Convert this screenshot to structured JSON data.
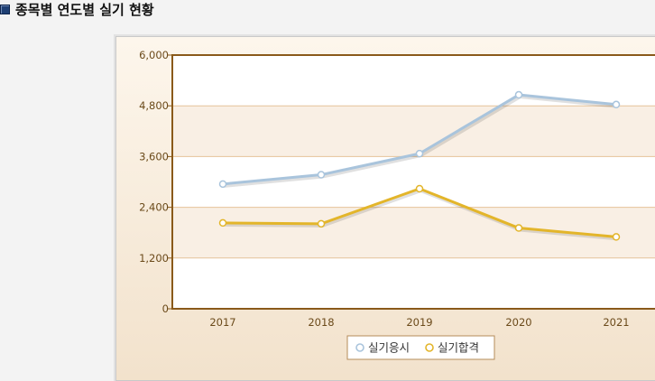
{
  "page": {
    "title": "종목별 연도별 실기 현황"
  },
  "chart_data": {
    "type": "line",
    "categories": [
      "2017",
      "2018",
      "2019",
      "2020",
      "2021"
    ],
    "series": [
      {
        "name": "실기응시",
        "values": [
          2950,
          3170,
          3670,
          5060,
          4830
        ],
        "color": "#a9c4dc"
      },
      {
        "name": "실기합격",
        "values": [
          2030,
          2010,
          2840,
          1910,
          1700
        ],
        "color": "#e3b52a"
      }
    ],
    "ylim": [
      0,
      6000
    ],
    "yticks": [
      "0",
      "1,200",
      "2,400",
      "3,600",
      "4,800",
      "6,000"
    ],
    "title": "",
    "xlabel": "",
    "ylabel": "",
    "grid": true,
    "legend": "bottom-center"
  }
}
